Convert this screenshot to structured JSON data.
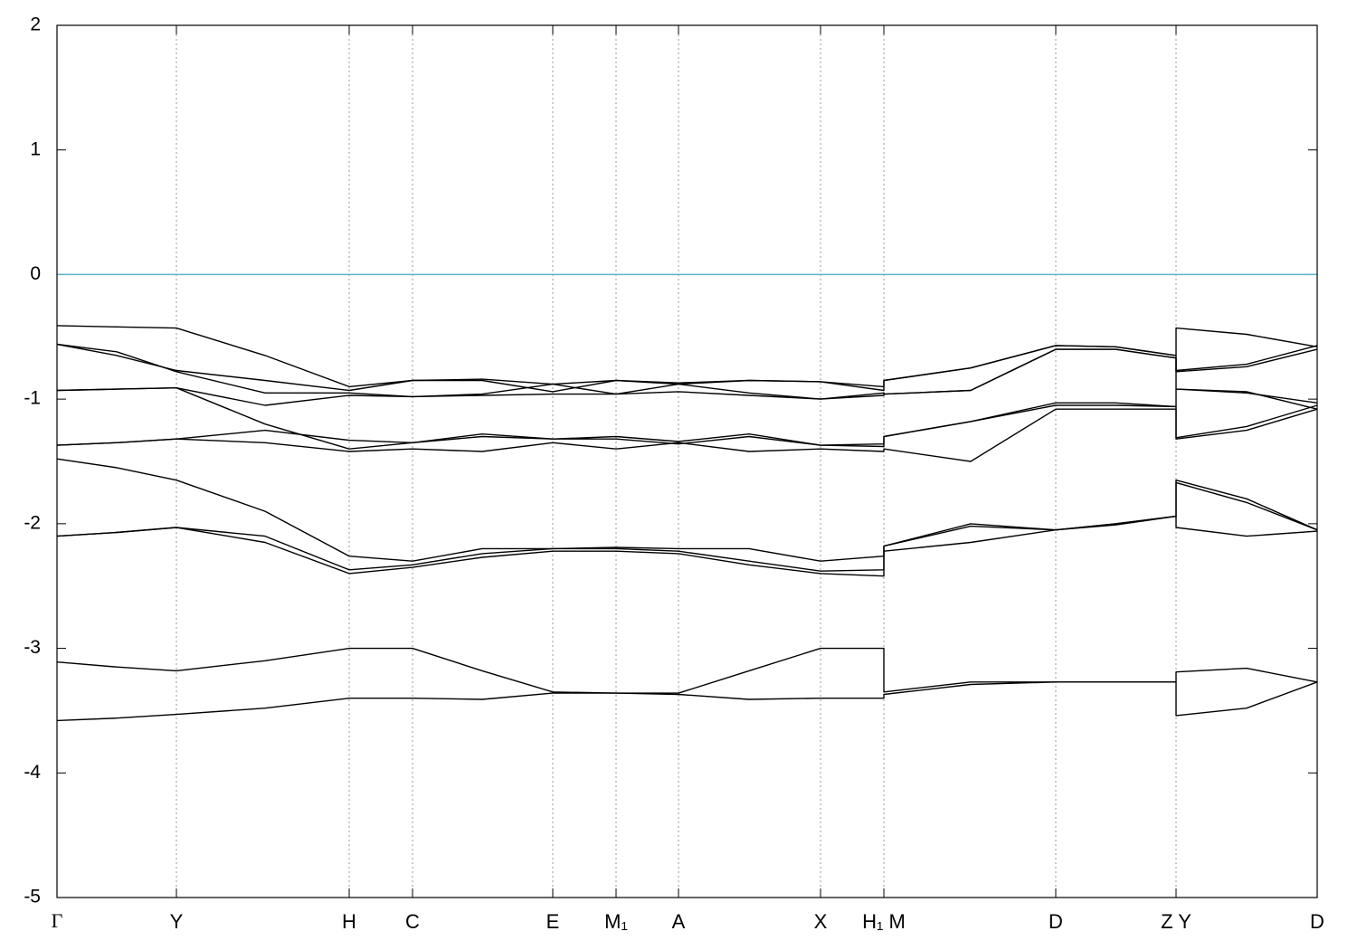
{
  "chart_data": {
    "type": "line",
    "x": [
      0,
      66,
      132,
      230,
      323,
      393,
      470,
      548,
      618,
      687,
      765,
      844,
      914,
      914,
      1010,
      1104,
      1170,
      1237,
      1237,
      1315,
      1393
    ],
    "xlim": [
      0,
      1393
    ],
    "xticks": [
      {
        "value": 0,
        "label": "Γ"
      },
      {
        "value": 132,
        "label": "Y"
      },
      {
        "value": 323,
        "label": "H"
      },
      {
        "value": 393,
        "label": "C"
      },
      {
        "value": 548,
        "label": "E"
      },
      {
        "value": 618,
        "label": "M₁"
      },
      {
        "value": 687,
        "label": "A"
      },
      {
        "value": 844,
        "label": "X"
      },
      {
        "value": 914,
        "label": "H₁ M"
      },
      {
        "value": 1104,
        "label": "D"
      },
      {
        "value": 1237,
        "label": "Z Y"
      },
      {
        "value": 1393,
        "label": "D"
      }
    ],
    "ylim": [
      -5,
      2
    ],
    "yticks": [
      2,
      1,
      0,
      -1,
      -2,
      -3,
      -4,
      -5
    ],
    "grid": true,
    "color": "#000000",
    "reference_line": {
      "y": 0,
      "color": "#5ab4c8"
    },
    "series": [
      {
        "values": [
          -3.58,
          -3.56,
          -3.53,
          -3.48,
          -3.4,
          -3.4,
          -3.41,
          -3.36,
          -3.36,
          -3.37,
          -3.41,
          -3.4,
          -3.4,
          -3.37,
          -3.29,
          -3.27,
          -3.27,
          -3.27,
          -3.54,
          -3.48,
          -3.27
        ]
      },
      {
        "values": [
          -3.11,
          -3.15,
          -3.18,
          -3.1,
          -3.0,
          -3.0,
          -3.18,
          -3.35,
          -3.36,
          -3.36,
          -3.18,
          -3.0,
          -3.0,
          -3.35,
          -3.27,
          -3.27,
          -3.27,
          -3.27,
          -3.19,
          -3.16,
          -3.27
        ]
      },
      {
        "values": [
          -2.1,
          -2.07,
          -2.03,
          -2.15,
          -2.4,
          -2.35,
          -2.27,
          -2.22,
          -2.22,
          -2.24,
          -2.33,
          -2.4,
          -2.42,
          -2.22,
          -2.15,
          -2.05,
          -2.0,
          -1.94,
          -2.03,
          -2.1,
          -2.06
        ]
      },
      {
        "values": [
          -2.1,
          -2.07,
          -2.03,
          -2.1,
          -2.37,
          -2.33,
          -2.24,
          -2.2,
          -2.2,
          -2.22,
          -2.3,
          -2.38,
          -2.37,
          -2.18,
          -2.0,
          -2.05,
          -2.0,
          -1.94,
          -1.65,
          -1.8,
          -2.05
        ]
      },
      {
        "values": [
          -1.48,
          -1.55,
          -1.65,
          -1.9,
          -2.26,
          -2.3,
          -2.2,
          -2.2,
          -2.19,
          -2.2,
          -2.2,
          -2.3,
          -2.26,
          -2.18,
          -2.02,
          -2.05,
          -2.01,
          -1.94,
          -1.67,
          -1.83,
          -2.05
        ]
      },
      {
        "values": [
          -1.37,
          -1.35,
          -1.32,
          -1.35,
          -1.42,
          -1.4,
          -1.42,
          -1.35,
          -1.4,
          -1.35,
          -1.42,
          -1.4,
          -1.42,
          -1.4,
          -1.5,
          -1.08,
          -1.08,
          -1.08,
          -1.32,
          -1.25,
          -1.08
        ]
      },
      {
        "values": [
          -1.37,
          -1.35,
          -1.32,
          -1.25,
          -1.33,
          -1.35,
          -1.3,
          -1.32,
          -1.32,
          -1.36,
          -1.3,
          -1.37,
          -1.36,
          -1.3,
          -1.18,
          -1.05,
          -1.05,
          -1.06,
          -1.31,
          -1.22,
          -1.05
        ]
      },
      {
        "values": [
          -0.93,
          -0.92,
          -0.91,
          -1.2,
          -1.4,
          -1.35,
          -1.28,
          -1.32,
          -1.3,
          -1.34,
          -1.28,
          -1.37,
          -1.38,
          -1.3,
          -1.18,
          -1.03,
          -1.03,
          -1.06,
          -0.92,
          -0.95,
          -1.03
        ]
      },
      {
        "values": [
          -0.93,
          -0.92,
          -0.91,
          -1.05,
          -0.97,
          -0.98,
          -0.97,
          -0.96,
          -0.96,
          -0.94,
          -0.97,
          -1.0,
          -0.97,
          -0.96,
          -0.93,
          -0.6,
          -0.6,
          -0.67,
          -0.92,
          -0.94,
          -1.08
        ]
      },
      {
        "values": [
          -0.56,
          -0.65,
          -0.77,
          -0.85,
          -0.93,
          -0.85,
          -0.85,
          -0.94,
          -0.85,
          -0.88,
          -0.85,
          -0.86,
          -0.93,
          -0.85,
          -0.75,
          -0.57,
          -0.58,
          -0.65,
          -0.77,
          -0.72,
          -0.57
        ]
      },
      {
        "values": [
          -0.56,
          -0.62,
          -0.78,
          -0.95,
          -0.95,
          -0.98,
          -0.96,
          -0.88,
          -0.96,
          -0.88,
          -0.95,
          -1.0,
          -0.95,
          -0.96,
          -0.93,
          -0.6,
          -0.6,
          -0.67,
          -0.78,
          -0.74,
          -0.6
        ]
      },
      {
        "values": [
          -0.41,
          -0.42,
          -0.43,
          -0.65,
          -0.9,
          -0.85,
          -0.84,
          -0.88,
          -0.85,
          -0.87,
          -0.85,
          -0.86,
          -0.9,
          -0.85,
          -0.75,
          -0.57,
          -0.58,
          -0.65,
          -0.43,
          -0.48,
          -0.58
        ]
      }
    ]
  }
}
